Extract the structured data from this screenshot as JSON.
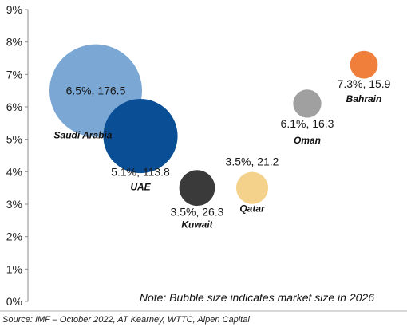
{
  "chart_data": {
    "type": "scatter",
    "subtype": "bubble",
    "title": "",
    "xlabel": "",
    "ylabel": "",
    "ylim": [
      0,
      9
    ],
    "y_ticks": [
      "0%",
      "1%",
      "2%",
      "3%",
      "4%",
      "5%",
      "6%",
      "7%",
      "8%",
      "9%"
    ],
    "grid": false,
    "series": [
      {
        "name": "Saudi Arabia",
        "y": 6.5,
        "size": 176.5,
        "label": "6.5%, 176.5",
        "color": "#7BA7D4"
      },
      {
        "name": "UAE",
        "y": 5.1,
        "size": 113.8,
        "label": "5.1%, 113.8",
        "color": "#0A4E96"
      },
      {
        "name": "Kuwait",
        "y": 3.5,
        "size": 26.3,
        "label": "3.5%, 26.3",
        "color": "#3A3A3A"
      },
      {
        "name": "Qatar",
        "y": 3.5,
        "size": 21.2,
        "label": "3.5%, 21.2",
        "color": "#F5D28C"
      },
      {
        "name": "Oman",
        "y": 6.1,
        "size": 16.3,
        "label": "6.1%, 16.3",
        "color": "#A0A0A0"
      },
      {
        "name": "Bahrain",
        "y": 7.3,
        "size": 15.9,
        "label": "7.3%, 15.9",
        "color": "#F07F3C"
      }
    ],
    "note": "Note: Bubble size indicates market size in 2026"
  },
  "footer": {
    "source": "Source: IMF – October 2022, AT Kearney, WTTC, Alpen Capital"
  }
}
